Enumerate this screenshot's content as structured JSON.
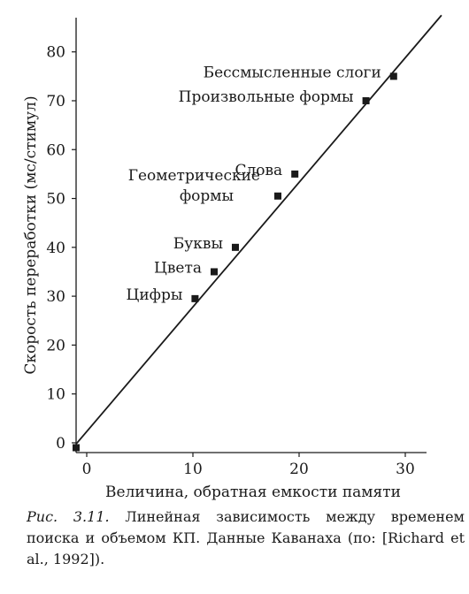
{
  "chart_data": {
    "type": "scatter",
    "xlabel": "Величина, обратная емкости памяти",
    "ylabel": "Скорость переработки (мс/стимул)",
    "xlim": [
      -1,
      32
    ],
    "ylim": [
      -2,
      87
    ],
    "xticks": [
      0,
      10,
      20,
      30
    ],
    "yticks": [
      0,
      10,
      20,
      30,
      40,
      50,
      60,
      70,
      80
    ],
    "grid": false,
    "fit_line": {
      "intercept": 2.3,
      "slope": 2.55
    },
    "points": [
      {
        "x": -1.0,
        "y": -1.0,
        "label": []
      },
      {
        "x": 10.2,
        "y": 29.5,
        "label": [
          "Цифры"
        ]
      },
      {
        "x": 12.0,
        "y": 35.0,
        "label": [
          "Цвета"
        ]
      },
      {
        "x": 14.0,
        "y": 40.0,
        "label": [
          "Буквы"
        ]
      },
      {
        "x": 18.0,
        "y": 50.5,
        "label": [
          "Геометрические",
          "формы"
        ]
      },
      {
        "x": 19.6,
        "y": 55.0,
        "label": [
          "Слова"
        ]
      },
      {
        "x": 26.3,
        "y": 70.0,
        "label": [
          "Произвольные формы"
        ]
      },
      {
        "x": 28.9,
        "y": 75.0,
        "label": [
          "Бессмысленные слоги"
        ]
      }
    ]
  },
  "caption": {
    "figure": "Рис. 3.11.",
    "text": " Линейная зависимость между временем поиска и объемом КП. Данные Каванаха (по: [Richard et al., 1992])."
  }
}
